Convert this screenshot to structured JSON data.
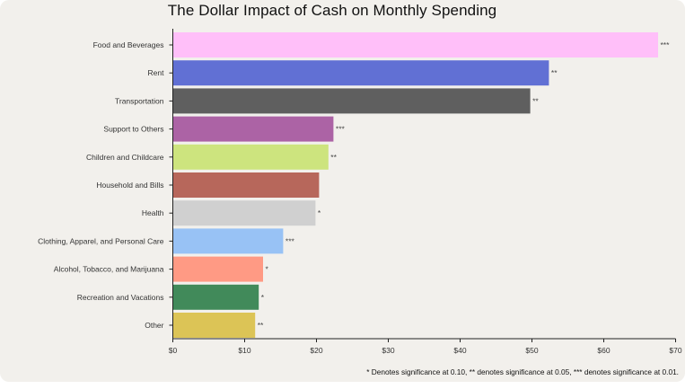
{
  "chart_data": {
    "type": "bar",
    "orientation": "horizontal",
    "title": "The Dollar Impact of Cash on Monthly Spending",
    "xlim": [
      0,
      70
    ],
    "xticks": [
      "$0",
      "$10",
      "$20",
      "$30",
      "$40",
      "$50",
      "$60",
      "$70"
    ],
    "grid": false,
    "bars": [
      {
        "label": "Food and Beverages",
        "value": 67.5,
        "sig": "***",
        "color": "#ffbff9"
      },
      {
        "label": "Rent",
        "value": 52.3,
        "sig": "**",
        "color": "#6170d4"
      },
      {
        "label": "Transportation",
        "value": 49.7,
        "sig": "**",
        "color": "#5f5f5f"
      },
      {
        "label": "Support to Others",
        "value": 22.3,
        "sig": "***",
        "color": "#ac63a5"
      },
      {
        "label": "Children and Childcare",
        "value": 21.6,
        "sig": "**",
        "color": "#cde47e"
      },
      {
        "label": "Household and Bills",
        "value": 20.3,
        "sig": "",
        "color": "#b7675b"
      },
      {
        "label": "Health",
        "value": 19.8,
        "sig": "*",
        "color": "#d0d0d0"
      },
      {
        "label": "Clothing, Apparel, and Personal Care",
        "value": 15.3,
        "sig": "***",
        "color": "#98c2f5"
      },
      {
        "label": "Alcohol, Tobacco, and Marijuana",
        "value": 12.5,
        "sig": "*",
        "color": "#ff9a84"
      },
      {
        "label": "Recreation and Vacations",
        "value": 11.9,
        "sig": "*",
        "color": "#418a5a"
      },
      {
        "label": "Other",
        "value": 11.4,
        "sig": "**",
        "color": "#dcc456"
      }
    ]
  },
  "footnote": "* Denotes significance at 0.10, ** denotes significance at 0.05, *** denotes significance at 0.01."
}
